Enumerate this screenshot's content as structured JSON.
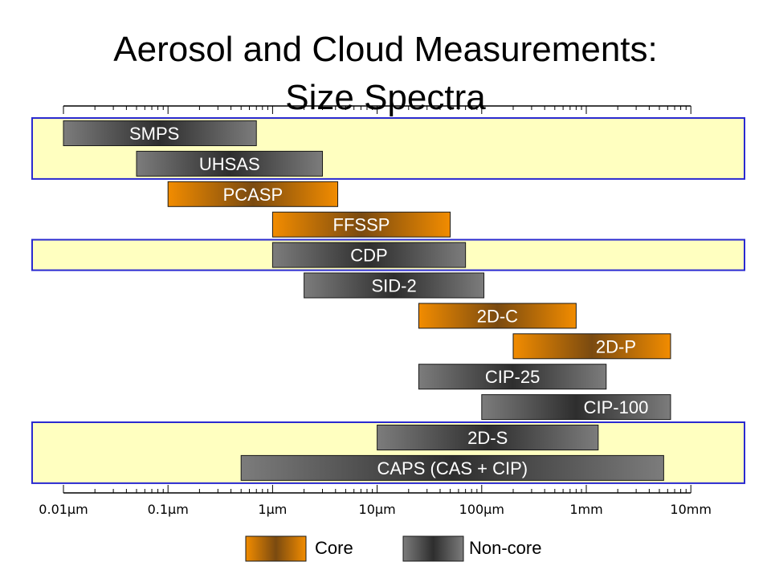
{
  "title_line1": "Aerosol and Cloud Measurements:",
  "title_line2": "Size Spectra",
  "chart_data": {
    "type": "range-bar",
    "xscale": "log",
    "xunit": "µm",
    "xlim": [
      0.01,
      10000
    ],
    "ticks": [
      {
        "value": 0.01,
        "label": "0.01µm"
      },
      {
        "value": 0.1,
        "label": "0.1µm"
      },
      {
        "value": 1,
        "label": "1µm"
      },
      {
        "value": 10,
        "label": "10µm"
      },
      {
        "value": 100,
        "label": "100µm"
      },
      {
        "value": 1000,
        "label": "1mm"
      },
      {
        "value": 10000,
        "label": "10mm"
      }
    ],
    "instruments": [
      {
        "name": "SMPS",
        "min": 0.01,
        "max": 0.7,
        "category": "Non-core",
        "label_align": "left"
      },
      {
        "name": "UHSAS",
        "min": 0.05,
        "max": 3,
        "category": "Non-core",
        "label_align": "center"
      },
      {
        "name": "PCASP",
        "min": 0.1,
        "max": 4.2,
        "category": "Core",
        "label_align": "center"
      },
      {
        "name": "FFSSP",
        "min": 1,
        "max": 50,
        "category": "Core",
        "label_align": "center"
      },
      {
        "name": "CDP",
        "min": 1,
        "max": 70,
        "category": "Non-core",
        "label_align": "center"
      },
      {
        "name": "SID-2",
        "min": 2,
        "max": 105,
        "category": "Non-core",
        "label_align": "center"
      },
      {
        "name": "2D-C",
        "min": 25,
        "max": 800,
        "category": "Core",
        "label_align": "center"
      },
      {
        "name": "2D-P",
        "min": 200,
        "max": 6400,
        "category": "Core",
        "label_align": "right"
      },
      {
        "name": "CIP-25",
        "min": 25,
        "max": 1550,
        "category": "Non-core",
        "label_align": "center"
      },
      {
        "name": "CIP-100",
        "min": 100,
        "max": 6400,
        "category": "Non-core",
        "label_align": "right"
      },
      {
        "name": "2D-S",
        "min": 10,
        "max": 1300,
        "category": "Non-core",
        "label_align": "center"
      },
      {
        "name": "CAPS (CAS + CIP)",
        "min": 0.5,
        "max": 5500,
        "category": "Non-core",
        "label_align": "center"
      }
    ],
    "highlight_groups": [
      {
        "from_instrument": 0,
        "to_instrument": 1
      },
      {
        "from_instrument": 4,
        "to_instrument": 4
      },
      {
        "from_instrument": 10,
        "to_instrument": 11
      }
    ],
    "legend": [
      {
        "key": "Core",
        "label": "Core"
      },
      {
        "key": "Non-core",
        "label": "Non-core"
      }
    ],
    "colors": {
      "core_edge": "#f28c00",
      "core_mid": "#7a4a10",
      "noncore_edge": "#7c7c7c",
      "noncore_mid": "#2e2e2e",
      "highlight_fill": "#ffffc0",
      "highlight_border": "#2a2ad0"
    }
  }
}
